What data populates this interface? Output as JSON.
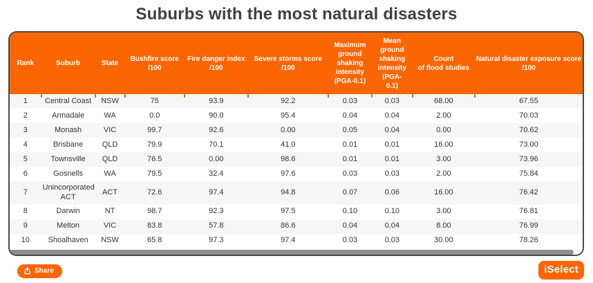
{
  "title": "Suburbs with the most natural disasters",
  "colors": {
    "accent_orange": "#fb6602",
    "title_text": "#3e4045",
    "card_border": "#4a4a4a",
    "row_alt": "#f6f6f6",
    "scrollbar_thumb": "#8f8f8f"
  },
  "table": {
    "columns": [
      {
        "id": "rank",
        "label": "Rank"
      },
      {
        "id": "suburb",
        "label": "Suburb"
      },
      {
        "id": "state",
        "label": "State"
      },
      {
        "id": "bushfire_score",
        "label": "Bushfire score\n/100"
      },
      {
        "id": "fire_danger_index",
        "label": "Fire danger index\n/100"
      },
      {
        "id": "severe_storms_score",
        "label": "Severe storms score\n/100"
      },
      {
        "id": "max_ground_shaking",
        "label": "Maximum\nground\nshaking\nintensity\n(PGA-0.1)"
      },
      {
        "id": "mean_ground_shaking",
        "label": "Mean\nground\nshaking\nintensity\n(PGA-\n0.1)"
      },
      {
        "id": "flood_studies_count",
        "label": "Count\nof flood studies"
      },
      {
        "id": "exposure_score",
        "label": "Natural disaster exposure score\n/100"
      }
    ],
    "rows": [
      [
        "1",
        "Central Coast",
        "NSW",
        "75",
        "93.9",
        "92.2",
        "0.03",
        "0.03",
        "68.00",
        "67.55"
      ],
      [
        "2",
        "Armadale",
        "WA",
        "0.0",
        "90.0",
        "95.4",
        "0.04",
        "0.04",
        "2.00",
        "70.03"
      ],
      [
        "3",
        "Monash",
        "VIC",
        "99.7",
        "92.6",
        "0.00",
        "0.05",
        "0.04",
        "0.00",
        "70.62"
      ],
      [
        "4",
        "Brisbane",
        "QLD",
        "79.9",
        "70.1",
        "41.0",
        "0.01",
        "0.01",
        "16.00",
        "73.00"
      ],
      [
        "5",
        "Townsville",
        "QLD",
        "76.5",
        "0.00",
        "98.6",
        "0.01",
        "0.01",
        "3.00",
        "73.96"
      ],
      [
        "6",
        "Gosnells",
        "WA",
        "79.5",
        "32.4",
        "97.6",
        "0.03",
        "0.03",
        "2.00",
        "75.84"
      ],
      [
        "7",
        "Unincorporated ACT",
        "ACT",
        "72.6",
        "97.4",
        "94.8",
        "0.07",
        "0.06",
        "16.00",
        "76.42"
      ],
      [
        "8",
        "Darwin",
        "NT",
        "98.7",
        "92.3",
        "97.5",
        "0.10",
        "0.10",
        "3.00",
        "76.81"
      ],
      [
        "9",
        "Melton",
        "VIC",
        "83.8",
        "57.8",
        "86.6",
        "0.04",
        "0.04",
        "8.00",
        "76.99"
      ],
      [
        "10",
        "Shoalhaven",
        "NSW",
        "65.8",
        "97.3",
        "97.4",
        "0.03",
        "0.03",
        "30.00",
        "78.26"
      ]
    ]
  },
  "footer": {
    "share_label": "Share",
    "brand": "iSelect"
  }
}
